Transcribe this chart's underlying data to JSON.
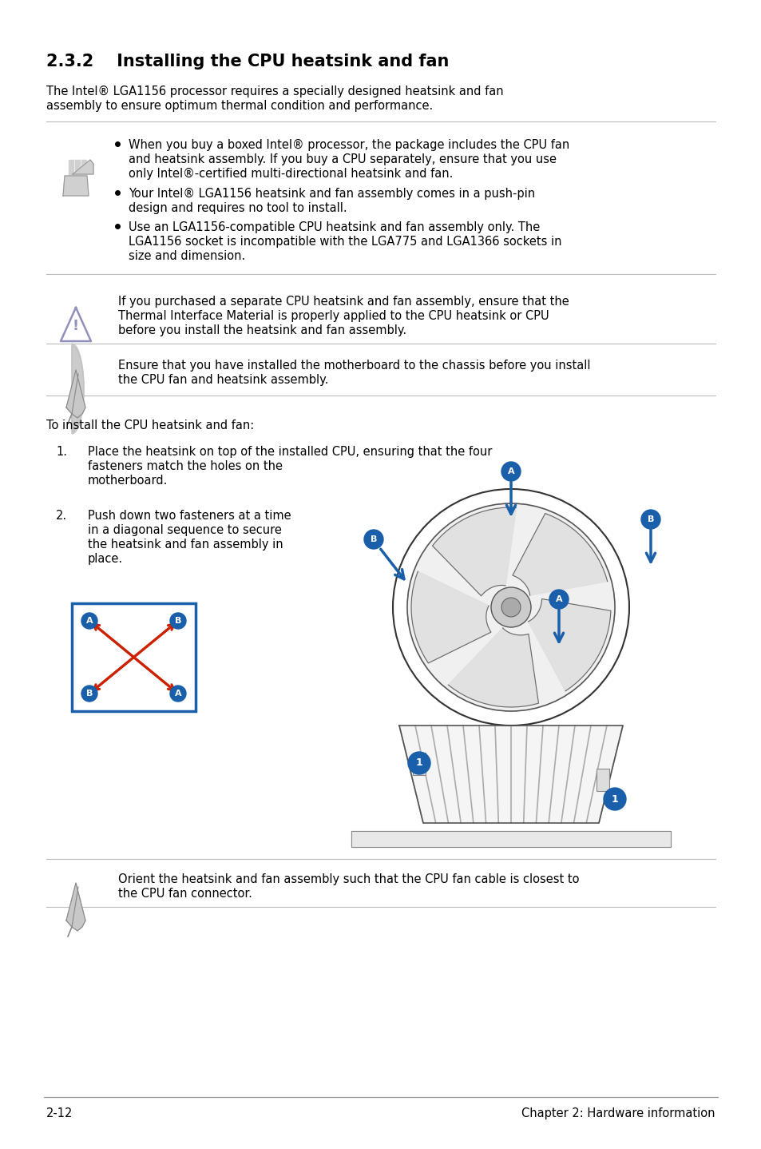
{
  "title_num": "2.3.2",
  "title_text": "Installing the CPU heatsink and fan",
  "intro1": "The Intel® LGA1156 processor requires a specially designed heatsink and fan",
  "intro2": "assembly to ensure optimum thermal condition and performance.",
  "b1l1": "When you buy a boxed Intel® processor, the package includes the CPU fan",
  "b1l2": "and heatsink assembly. If you buy a CPU separately, ensure that you use",
  "b1l3": "only Intel®-certified multi-directional heatsink and fan.",
  "b2l1": "Your Intel® LGA1156 heatsink and fan assembly comes in a push-pin",
  "b2l2": "design and requires no tool to install.",
  "b3l1": "Use an LGA1156-compatible CPU heatsink and fan assembly only. The",
  "b3l2": "LGA1156 socket is incompatible with the LGA775 and LGA1366 sockets in",
  "b3l3": "size and dimension.",
  "wl1": "If you purchased a separate CPU heatsink and fan assembly, ensure that the",
  "wl2": "Thermal Interface Material is properly applied to the CPU heatsink or CPU",
  "wl3": "before you install the heatsink and fan assembly.",
  "nl1": "Ensure that you have installed the motherboard to the chassis before you install",
  "nl2": "the CPU fan and heatsink assembly.",
  "install_intro": "To install the CPU heatsink and fan:",
  "s1n": "1.",
  "s1l1": "Place the heatsink on top of the installed CPU, ensuring that the four",
  "s1l2": "fasteners match the holes on the",
  "s1l3": "motherboard.",
  "s2n": "2.",
  "s2l1": "Push down two fasteners at a time",
  "s2l2": "in a diagonal sequence to secure",
  "s2l3": "the heatsink and fan assembly in",
  "s2l4": "place.",
  "n2l1": "Orient the heatsink and fan assembly such that the CPU fan cable is closest to",
  "n2l2": "the CPU fan connector.",
  "footer_left": "2-12",
  "footer_right": "Chapter 2: Hardware information",
  "bg": "#ffffff",
  "fg": "#000000",
  "blue": "#1a5faa",
  "red": "#cc2200",
  "line_c": "#bbbbbb",
  "warn_c": "#9090bb",
  "icon_c": "#aaaaaa"
}
